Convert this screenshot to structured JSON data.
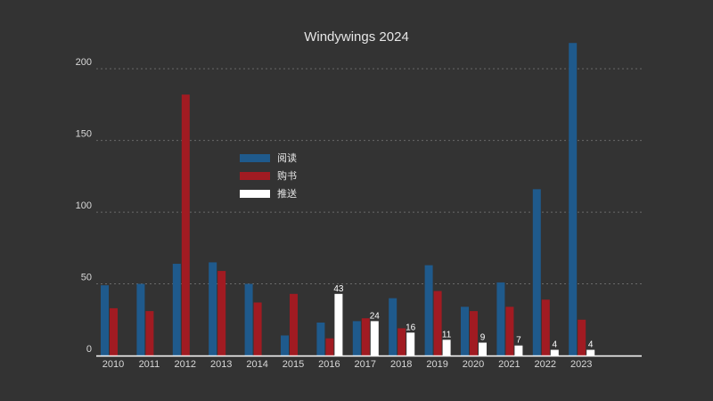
{
  "chart_data": {
    "type": "bar",
    "title": "Windywings 2024",
    "xlabel": "",
    "ylabel": "",
    "ylim": [
      0,
      220
    ],
    "yticks": [
      0,
      50,
      100,
      150,
      200
    ],
    "grid": true,
    "legend_position": "upper-left",
    "categories": [
      "2010",
      "2011",
      "2012",
      "2013",
      "2014",
      "2015",
      "2016",
      "2017",
      "2018",
      "2019",
      "2020",
      "2021",
      "2022",
      "2023"
    ],
    "series": [
      {
        "name": "阅读",
        "color": "#1f5a8c",
        "values": [
          49,
          50,
          64,
          65,
          50,
          14,
          23,
          24,
          40,
          63,
          34,
          51,
          116,
          218
        ]
      },
      {
        "name": "购书",
        "color": "#a11b22",
        "values": [
          33,
          31,
          182,
          59,
          37,
          43,
          12,
          26,
          19,
          45,
          31,
          34,
          39,
          25
        ]
      },
      {
        "name": "推送",
        "color": "#ffffff",
        "values": [
          null,
          null,
          null,
          null,
          null,
          null,
          43,
          24,
          16,
          11,
          9,
          7,
          4,
          4
        ],
        "data_labels": [
          null,
          null,
          null,
          null,
          null,
          null,
          "43",
          "24",
          "16",
          "11",
          "9",
          "7",
          "4",
          "4"
        ]
      }
    ]
  }
}
